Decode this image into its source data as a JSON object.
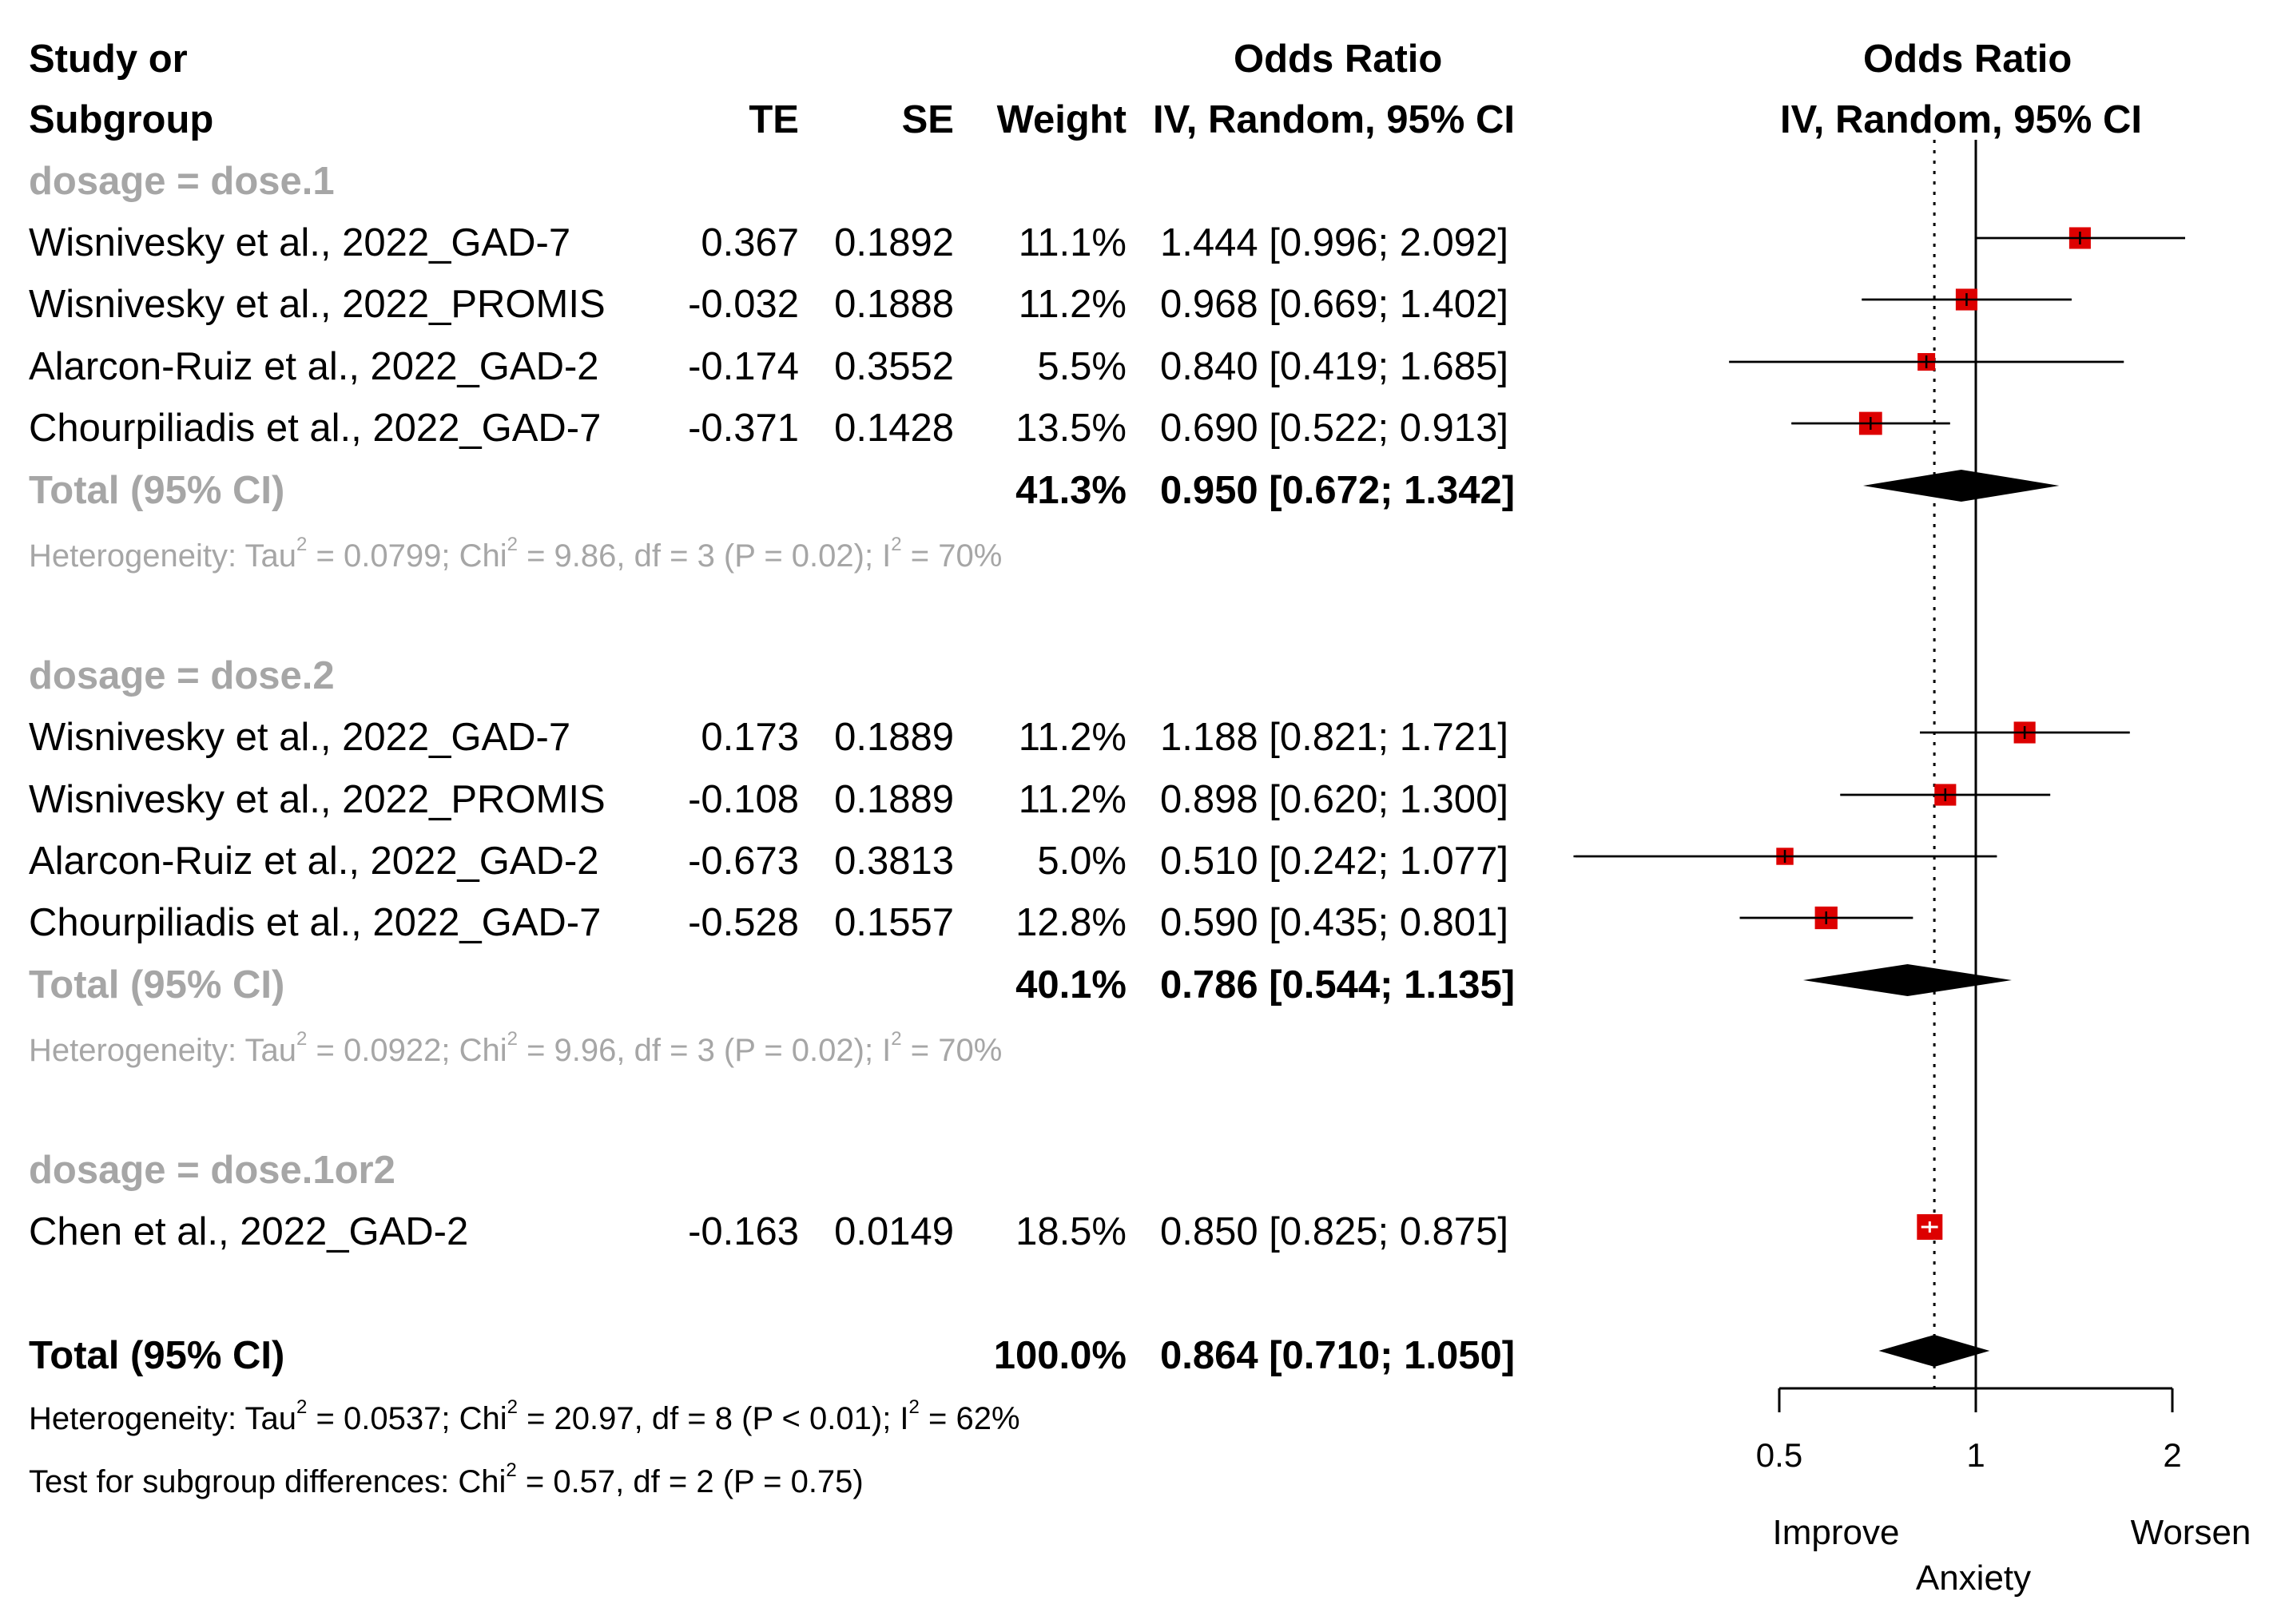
{
  "headers": {
    "study_line1": "Study or",
    "study_line2": "Subgroup",
    "te": "TE",
    "se": "SE",
    "weight": "Weight",
    "or_line1": "Odds Ratio",
    "or_line2": "IV, Random, 95% CI",
    "plot_line1": "Odds Ratio",
    "plot_line2": "IV, Random, 95% CI"
  },
  "groups": [
    {
      "label": "dosage = dose.1",
      "studies": [
        {
          "name": "Wisnivesky et al., 2022_GAD-7",
          "te": "0.367",
          "se": "0.1892",
          "weight": "11.1%",
          "ci": "1.444 [0.996; 2.092]"
        },
        {
          "name": "Wisnivesky et al., 2022_PROMIS",
          "te": "-0.032",
          "se": "0.1888",
          "weight": "11.2%",
          "ci": "0.968 [0.669; 1.402]"
        },
        {
          "name": "Alarcon-Ruiz et al., 2022_GAD-2",
          "te": "-0.174",
          "se": "0.3552",
          "weight": "5.5%",
          "ci": "0.840 [0.419; 1.685]"
        },
        {
          "name": "Chourpiliadis et al., 2022_GAD-7",
          "te": "-0.371",
          "se": "0.1428",
          "weight": "13.5%",
          "ci": "0.690 [0.522; 0.913]"
        }
      ],
      "total": {
        "label": "Total (95% CI)",
        "weight": "41.3%",
        "ci": "0.950 [0.672; 1.342]"
      },
      "het": {
        "p1": "Heterogeneity: Tau",
        "p2": " = 0.0799; Chi",
        "p3": " = 9.86, df = 3 (P = 0.02); I",
        "p4": " = 70%",
        "sup": "2"
      }
    },
    {
      "label": "dosage = dose.2",
      "studies": [
        {
          "name": "Wisnivesky et al., 2022_GAD-7",
          "te": "0.173",
          "se": "0.1889",
          "weight": "11.2%",
          "ci": "1.188 [0.821; 1.721]"
        },
        {
          "name": "Wisnivesky et al., 2022_PROMIS",
          "te": "-0.108",
          "se": "0.1889",
          "weight": "11.2%",
          "ci": "0.898 [0.620; 1.300]"
        },
        {
          "name": "Alarcon-Ruiz et al., 2022_GAD-2",
          "te": "-0.673",
          "se": "0.3813",
          "weight": "5.0%",
          "ci": "0.510 [0.242; 1.077]"
        },
        {
          "name": "Chourpiliadis et al., 2022_GAD-7",
          "te": "-0.528",
          "se": "0.1557",
          "weight": "12.8%",
          "ci": "0.590 [0.435; 0.801]"
        }
      ],
      "total": {
        "label": "Total (95% CI)",
        "weight": "40.1%",
        "ci": "0.786 [0.544; 1.135]"
      },
      "het": {
        "p1": "Heterogeneity: Tau",
        "p2": " = 0.0922; Chi",
        "p3": " = 9.96, df = 3 (P = 0.02); I",
        "p4": " = 70%",
        "sup": "2"
      }
    },
    {
      "label": "dosage = dose.1or2",
      "studies": [
        {
          "name": "Chen et al., 2022_GAD-2",
          "te": "-0.163",
          "se": "0.0149",
          "weight": "18.5%",
          "ci": "0.850 [0.825; 0.875]"
        }
      ]
    }
  ],
  "overall": {
    "label": "Total (95% CI)",
    "weight": "100.0%",
    "ci": "0.864 [0.710; 1.050]",
    "het": {
      "p1": "Heterogeneity: Tau",
      "p2": " = 0.0537; Chi",
      "p3": " = 20.97, df = 8 (P < 0.01); I",
      "p4": " = 62%",
      "sup": "2"
    },
    "subgroup_test": {
      "p1": "Test for subgroup differences: Chi",
      "p2": " = 0.57, df = 2 (P = 0.75)",
      "sup": "2"
    }
  },
  "axis": {
    "ticks": [
      "0.5",
      "1",
      "2"
    ],
    "left_label": "Improve",
    "right_label": "Worsen",
    "title": "Anxiety"
  },
  "colors": {
    "box": "#dd0000",
    "grey_text": "#a6a6a6",
    "diamond": "#000000"
  },
  "chart_data": {
    "type": "forest",
    "scale": "log",
    "xlim": [
      0.5,
      2
    ],
    "ticks": [
      0.5,
      1,
      2
    ],
    "null_value": 1,
    "pooled_estimate_line": 0.864,
    "xlabel": "Anxiety",
    "rows": [
      {
        "group": "dose.1",
        "kind": "study",
        "est": 1.444,
        "lo": 0.996,
        "hi": 2.092,
        "weight": 11.1
      },
      {
        "group": "dose.1",
        "kind": "study",
        "est": 0.968,
        "lo": 0.669,
        "hi": 1.402,
        "weight": 11.2
      },
      {
        "group": "dose.1",
        "kind": "study",
        "est": 0.84,
        "lo": 0.419,
        "hi": 1.685,
        "weight": 5.5
      },
      {
        "group": "dose.1",
        "kind": "study",
        "est": 0.69,
        "lo": 0.522,
        "hi": 0.913,
        "weight": 13.5
      },
      {
        "group": "dose.1",
        "kind": "total",
        "est": 0.95,
        "lo": 0.672,
        "hi": 1.342,
        "weight": 41.3
      },
      {
        "group": "dose.2",
        "kind": "study",
        "est": 1.188,
        "lo": 0.821,
        "hi": 1.721,
        "weight": 11.2
      },
      {
        "group": "dose.2",
        "kind": "study",
        "est": 0.898,
        "lo": 0.62,
        "hi": 1.3,
        "weight": 11.2
      },
      {
        "group": "dose.2",
        "kind": "study",
        "est": 0.51,
        "lo": 0.242,
        "hi": 1.077,
        "weight": 5.0
      },
      {
        "group": "dose.2",
        "kind": "study",
        "est": 0.59,
        "lo": 0.435,
        "hi": 0.801,
        "weight": 12.8
      },
      {
        "group": "dose.2",
        "kind": "total",
        "est": 0.786,
        "lo": 0.544,
        "hi": 1.135,
        "weight": 40.1
      },
      {
        "group": "dose.1or2",
        "kind": "study",
        "est": 0.85,
        "lo": 0.825,
        "hi": 0.875,
        "weight": 18.5
      },
      {
        "group": "overall",
        "kind": "total",
        "est": 0.864,
        "lo": 0.71,
        "hi": 1.05,
        "weight": 100.0
      }
    ]
  }
}
